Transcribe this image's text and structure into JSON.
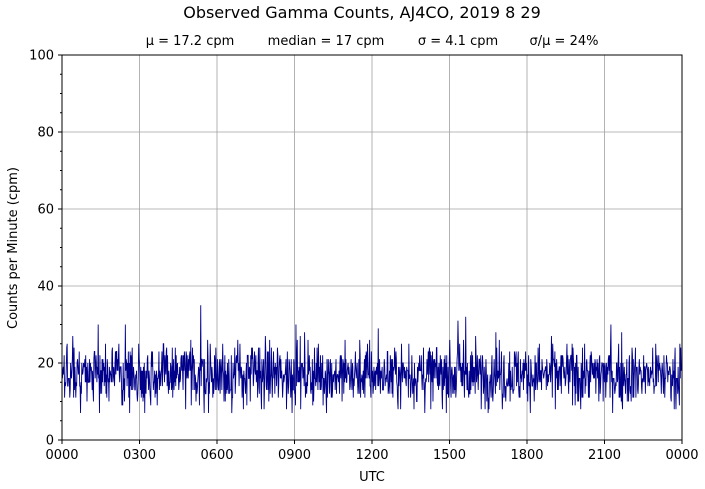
{
  "chart_data": {
    "type": "line",
    "title": "Observed Gamma Counts, AJ4CO, 2019 8 29",
    "stats": {
      "mean": "μ = 17.2 cpm",
      "median": "median = 17 cpm",
      "sigma": "σ = 4.1 cpm",
      "cv": "σ/μ = 24%"
    },
    "xlabel": "UTC",
    "ylabel": "Counts per Minute (cpm)",
    "xlim": [
      0,
      1440
    ],
    "ylim": [
      0,
      100
    ],
    "x_ticks": [
      {
        "value": 0,
        "label": "0000"
      },
      {
        "value": 180,
        "label": "0300"
      },
      {
        "value": 360,
        "label": "0600"
      },
      {
        "value": 540,
        "label": "0900"
      },
      {
        "value": 720,
        "label": "1200"
      },
      {
        "value": 900,
        "label": "1500"
      },
      {
        "value": 1080,
        "label": "1800"
      },
      {
        "value": 1260,
        "label": "2100"
      },
      {
        "value": 1440,
        "label": "0000"
      }
    ],
    "y_ticks": [
      0,
      20,
      40,
      60,
      80,
      100
    ],
    "y_minor_step": 5,
    "grid": true,
    "series": [
      {
        "color": "#00008b",
        "x_unit": "minutes since 0000 UTC",
        "values_note": "one count per minute, 1440 samples",
        "values": []
      }
    ]
  },
  "colors": {
    "line": "#00008b",
    "grid": "#a0a0a0",
    "axes": "#000000"
  }
}
